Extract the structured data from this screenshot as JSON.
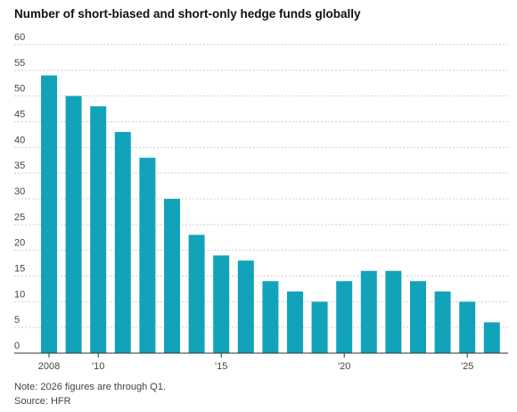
{
  "chart_data": {
    "type": "bar",
    "title": "Number of short-biased and short-only hedge funds globally",
    "categories": [
      "2008",
      null,
      "'10",
      null,
      null,
      null,
      null,
      "'15",
      null,
      null,
      null,
      null,
      "'20",
      null,
      null,
      null,
      null,
      "'25",
      null
    ],
    "values": [
      54,
      50,
      48,
      43,
      38,
      30,
      23,
      19,
      18,
      14,
      12,
      10,
      14,
      16,
      16,
      14,
      12,
      10,
      6
    ],
    "color": "#12a3bb",
    "ylim": [
      0,
      60
    ],
    "yticks": [
      0,
      5,
      10,
      15,
      20,
      25,
      30,
      35,
      40,
      45,
      50,
      55,
      60
    ],
    "grid": true,
    "note": "Note: 2026 figures are through Q1.",
    "source": "Source: HFR"
  }
}
